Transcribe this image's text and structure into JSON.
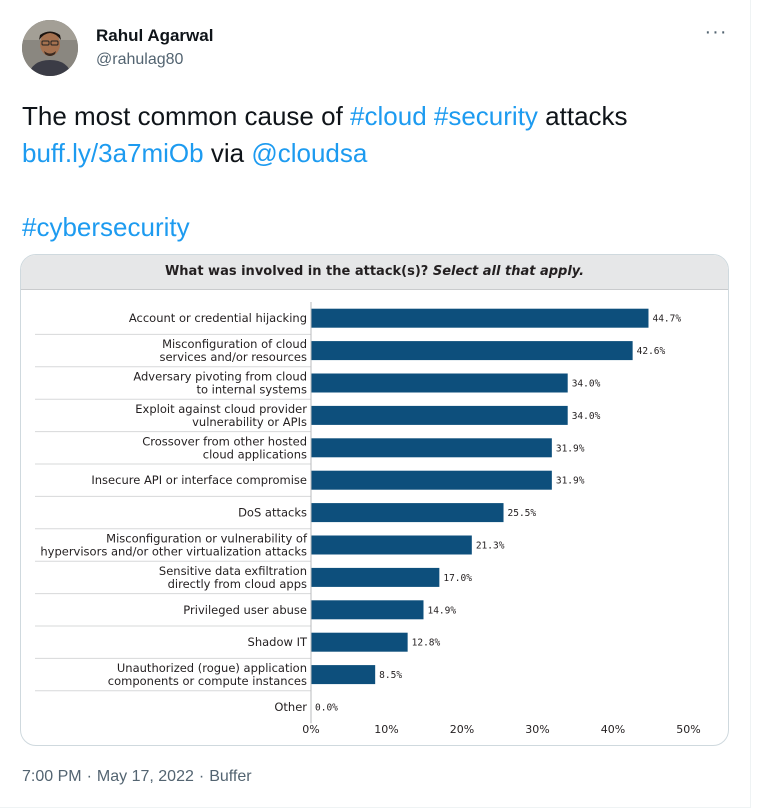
{
  "tweet": {
    "display_name": "Rahul Agarwal",
    "handle": "@rahulag80",
    "more_label": "···",
    "line1_text1": "The most common cause of ",
    "line1_hashtag1": "#cloud",
    "line1_space": " ",
    "line1_hashtag2": "#security",
    "line1_text2": " attacks",
    "line2_link": "buff.ly/3a7miOb",
    "line2_via": " via ",
    "line2_mention": "@cloudsa",
    "line4_hashtag": "#cybersecurity",
    "time": "7:00 PM",
    "separator": "·",
    "date": "May 17, 2022",
    "source": "Buffer"
  },
  "colors": {
    "bar": "#0d4f7c",
    "link": "#1d9bf0",
    "header_bg": "#e6e7e8"
  },
  "chart_data": {
    "type": "bar",
    "orientation": "horizontal",
    "title_bold": "What was involved in the attack(s)? ",
    "title_italic": "Select all that apply.",
    "categories": [
      [
        "Account or credential hijacking"
      ],
      [
        "Misconfiguration of cloud",
        "services and/or resources"
      ],
      [
        "Adversary pivoting from cloud",
        "to internal systems"
      ],
      [
        "Exploit against cloud provider",
        "vulnerability or APIs"
      ],
      [
        "Crossover from other hosted",
        "cloud applications"
      ],
      [
        "Insecure API or interface compromise"
      ],
      [
        "DoS attacks"
      ],
      [
        "Misconfiguration or vulnerability of",
        "hypervisors and/or other virtualization attacks"
      ],
      [
        "Sensitive data exfiltration",
        "directly from cloud apps"
      ],
      [
        "Privileged user abuse"
      ],
      [
        "Shadow IT"
      ],
      [
        "Unauthorized (rogue) application",
        "components or compute instances"
      ],
      [
        "Other"
      ]
    ],
    "values": [
      44.7,
      42.6,
      34.0,
      34.0,
      31.9,
      31.9,
      25.5,
      21.3,
      17.0,
      14.9,
      12.8,
      8.5,
      0.0
    ],
    "value_labels": [
      "44.7%",
      "42.6%",
      "34.0%",
      "34.0%",
      "31.9%",
      "31.9%",
      "25.5%",
      "21.3%",
      "17.0%",
      "14.9%",
      "12.8%",
      "8.5%",
      "0.0%"
    ],
    "xlim": [
      0,
      50
    ],
    "xticks": [
      "0%",
      "10%",
      "20%",
      "30%",
      "40%",
      "50%"
    ],
    "xtick_values": [
      0,
      10,
      20,
      30,
      40,
      50
    ],
    "grid": false,
    "legend": "none"
  }
}
